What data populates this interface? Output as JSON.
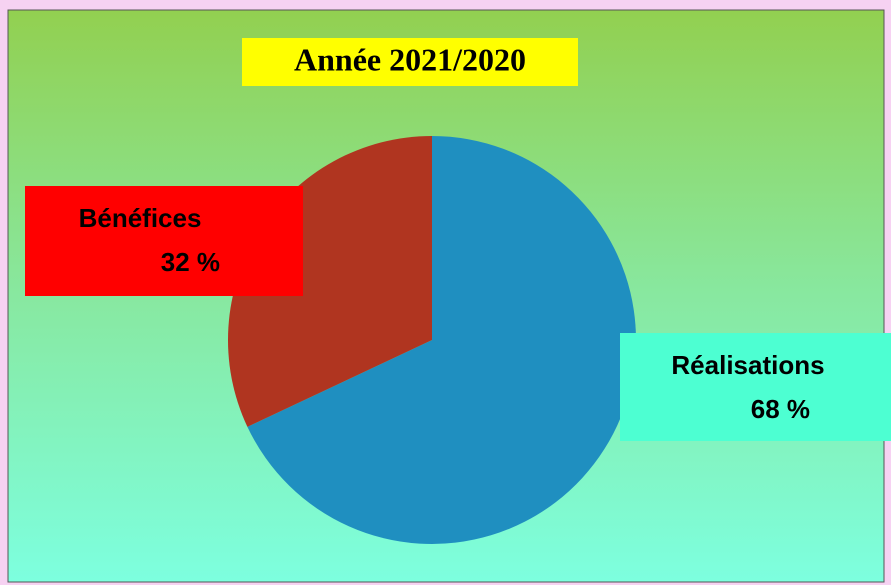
{
  "chart_data": {
    "type": "pie",
    "title": "Année 2021/2020",
    "categories": [
      "Réalisations",
      "Bénéfices"
    ],
    "values": [
      68,
      32
    ],
    "value_labels": [
      "68 %",
      "32 %"
    ],
    "colors": [
      "#1f8fc0",
      "#b03520"
    ],
    "label_colors": [
      "#4dffd2",
      "#ff0000"
    ]
  }
}
